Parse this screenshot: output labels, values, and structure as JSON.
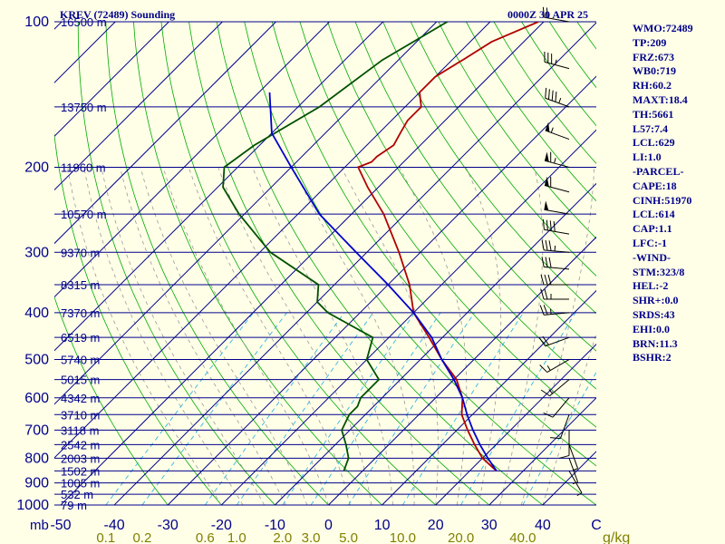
{
  "header": {
    "title": "KREV (72489) Sounding",
    "timestamp": "0000Z 30 APR 25"
  },
  "indices": [
    "WMO:72489",
    "TP:209",
    "FRZ:673",
    "WB0:719",
    "RH:60.2",
    "MAXT:18.4",
    "TH:5661",
    "L57:7.4",
    "LCL:629",
    "LI:1.0",
    "-PARCEL-",
    "CAPE:18",
    "CINH:51970",
    "LCL:614",
    "CAP:1.1",
    "LFC:-1",
    "-WIND-",
    "STM:323/8",
    "HEL:-2",
    "SHR+:0.0",
    "SRDS:43",
    "EHI:0.0",
    "BRN:11.3",
    "BSHR:2"
  ],
  "colors": {
    "background": "#FFFFE8",
    "isobars": "#00008B",
    "isotherms": "#00008B",
    "dry_adiabats": "#00AA00",
    "moist_adiabats": "#999999",
    "mixing_ratio": "#33B5E5",
    "temperature": "#B00000",
    "dewpoint": "#005000",
    "parcel": "#0000CC",
    "wind_barbs": "#000000",
    "text": "#00008B",
    "mixing_ratio_text": "#808000"
  },
  "chart_data": {
    "type": "skew-t log-p sounding",
    "y_axis": {
      "unit_label": "mb",
      "scale": "log",
      "range": [
        1000,
        100
      ],
      "ticks": [
        100,
        200,
        300,
        400,
        500,
        600,
        700,
        800,
        900,
        1000
      ]
    },
    "x_axis": {
      "unit": "C",
      "range": [
        -50,
        50
      ],
      "ticks": [
        -50,
        -40,
        -30,
        -20,
        -10,
        0,
        10,
        20,
        30,
        40,
        50
      ],
      "tick_labels": [
        "-50",
        "-40",
        "-30",
        "-20",
        "-10",
        "0",
        "10",
        "20",
        "30",
        "40",
        "C"
      ]
    },
    "height_labels": [
      {
        "p": 100,
        "text": "16500 m"
      },
      {
        "p": 150,
        "text": "13750 m"
      },
      {
        "p": 200,
        "text": "11960 m"
      },
      {
        "p": 250,
        "text": "10570 m"
      },
      {
        "p": 300,
        "text": "9370 m"
      },
      {
        "p": 350,
        "text": "8315 m"
      },
      {
        "p": 400,
        "text": "7370 m"
      },
      {
        "p": 450,
        "text": "6519 m"
      },
      {
        "p": 500,
        "text": "5740 m"
      },
      {
        "p": 550,
        "text": "5015 m"
      },
      {
        "p": 600,
        "text": "4342 m"
      },
      {
        "p": 650,
        "text": "3710 m"
      },
      {
        "p": 700,
        "text": "3118 m"
      },
      {
        "p": 750,
        "text": "2542 m"
      },
      {
        "p": 800,
        "text": "2003 m"
      },
      {
        "p": 850,
        "text": "1502 m"
      },
      {
        "p": 900,
        "text": "1005 m"
      },
      {
        "p": 950,
        "text": "532 m"
      },
      {
        "p": 1000,
        "text": "79 m"
      }
    ],
    "mixing_ratio_axis": {
      "unit": "g/kg",
      "values": [
        0.1,
        0.2,
        0.6,
        1.0,
        2.0,
        3.0,
        5.0,
        10.0,
        20.0,
        40.0
      ],
      "labels": [
        "0.1",
        "0.2",
        "0.6",
        "1.0",
        "2.0",
        "3.0",
        "5.0",
        "10.0",
        "20.0",
        "40.0"
      ]
    },
    "series": [
      {
        "kind": "temperature",
        "points": [
          [
            100,
            -51
          ],
          [
            110,
            -56
          ],
          [
            120,
            -58
          ],
          [
            130,
            -60
          ],
          [
            140,
            -60
          ],
          [
            150,
            -57
          ],
          [
            160,
            -57
          ],
          [
            170,
            -56
          ],
          [
            180,
            -55
          ],
          [
            190,
            -56
          ],
          [
            195,
            -56
          ],
          [
            200,
            -57.5
          ],
          [
            220,
            -52
          ],
          [
            250,
            -44
          ],
          [
            300,
            -34
          ],
          [
            350,
            -26
          ],
          [
            400,
            -20
          ],
          [
            450,
            -12.5
          ],
          [
            500,
            -6
          ],
          [
            550,
            0.5
          ],
          [
            600,
            5
          ],
          [
            650,
            8
          ],
          [
            700,
            12
          ],
          [
            750,
            16
          ],
          [
            800,
            20
          ],
          [
            850,
            25
          ]
        ]
      },
      {
        "kind": "dewpoint",
        "points": [
          [
            100,
            -68
          ],
          [
            120,
            -73
          ],
          [
            150,
            -76
          ],
          [
            180,
            -81
          ],
          [
            200,
            -82.5
          ],
          [
            220,
            -79
          ],
          [
            250,
            -71
          ],
          [
            300,
            -58
          ],
          [
            350,
            -43
          ],
          [
            380,
            -40
          ],
          [
            400,
            -36
          ],
          [
            450,
            -23
          ],
          [
            500,
            -20
          ],
          [
            550,
            -14
          ],
          [
            600,
            -14
          ],
          [
            625,
            -13
          ],
          [
            650,
            -13
          ],
          [
            700,
            -11.5
          ],
          [
            750,
            -8
          ],
          [
            800,
            -5
          ],
          [
            850,
            -3.5
          ]
        ]
      },
      {
        "kind": "parcel",
        "points": [
          [
            140,
            -88
          ],
          [
            170,
            -80
          ],
          [
            200,
            -70
          ],
          [
            250,
            -56
          ],
          [
            300,
            -42
          ],
          [
            350,
            -30
          ],
          [
            400,
            -20
          ],
          [
            450,
            -12
          ],
          [
            500,
            -6
          ],
          [
            550,
            0
          ],
          [
            600,
            5
          ],
          [
            650,
            9
          ],
          [
            700,
            13
          ],
          [
            750,
            17
          ],
          [
            800,
            21
          ],
          [
            850,
            25
          ]
        ]
      }
    ],
    "winds": [
      {
        "p": 100,
        "dir": 280,
        "spd": 20
      },
      {
        "p": 125,
        "dir": 285,
        "spd": 35
      },
      {
        "p": 150,
        "dir": 290,
        "spd": 45
      },
      {
        "p": 175,
        "dir": 290,
        "spd": 55
      },
      {
        "p": 200,
        "dir": 285,
        "spd": 65
      },
      {
        "p": 225,
        "dir": 285,
        "spd": 60
      },
      {
        "p": 250,
        "dir": 280,
        "spd": 50
      },
      {
        "p": 275,
        "dir": 280,
        "spd": 40
      },
      {
        "p": 300,
        "dir": 275,
        "spd": 35
      },
      {
        "p": 325,
        "dir": 275,
        "spd": 30
      },
      {
        "p": 350,
        "dir": 270,
        "spd": 30
      },
      {
        "p": 375,
        "dir": 270,
        "spd": 25
      },
      {
        "p": 400,
        "dir": 265,
        "spd": 25
      },
      {
        "p": 450,
        "dir": 250,
        "spd": 20
      },
      {
        "p": 500,
        "dir": 240,
        "spd": 15
      },
      {
        "p": 550,
        "dir": 230,
        "spd": 15
      },
      {
        "p": 600,
        "dir": 220,
        "spd": 10
      },
      {
        "p": 650,
        "dir": 200,
        "spd": 10
      },
      {
        "p": 700,
        "dir": 180,
        "spd": 10
      },
      {
        "p": 750,
        "dir": 160,
        "spd": 5
      },
      {
        "p": 800,
        "dir": 160,
        "spd": 5
      },
      {
        "p": 850,
        "dir": 150,
        "spd": 5
      }
    ]
  }
}
